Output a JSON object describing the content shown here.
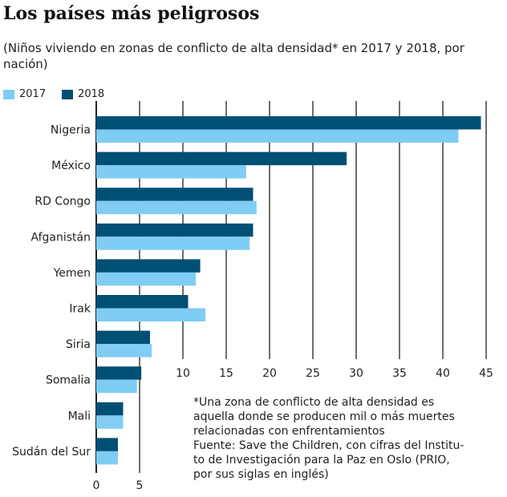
{
  "title": "Los países más peligrosos",
  "subtitle": "(Niños viviendo en zonas de conflicto de alta densidad* en 2017 y 2018, por nación)",
  "colors": {
    "2017": "#7fcdf4",
    "2018": "#004f74",
    "grid": "#222222"
  },
  "footnote": [
    "*Una zona de conflicto de alta densidad es",
    "aquella donde se producen mil o más muertes",
    "relacionadas con enfrentamientos",
    "Fuente: Save the Children, con cifras del Institu-",
    "to de Investigación para la Paz en Oslo (PRIO,",
    "por sus siglas en inglés)"
  ],
  "chart_data": {
    "type": "bar",
    "orientation": "horizontal",
    "title": "Los países más peligrosos",
    "categories": [
      "Nigeria",
      "México",
      "RD Congo",
      "Afganistán",
      "Yemen",
      "Irak",
      "Siria",
      "Somalia",
      "Mali",
      "Sudán del Sur"
    ],
    "series": [
      {
        "name": "2017",
        "values": [
          41.8,
          17.3,
          18.5,
          17.7,
          11.5,
          12.6,
          6.4,
          4.7,
          3.1,
          2.5
        ]
      },
      {
        "name": "2018",
        "values": [
          44.4,
          28.9,
          18.1,
          18.1,
          12.0,
          10.6,
          6.2,
          5.2,
          3.1,
          2.5
        ]
      }
    ],
    "xlim": [
      0,
      45
    ],
    "xticks": [
      "0",
      "5",
      "10",
      "15",
      "20",
      "25",
      "30",
      "35",
      "40",
      "45"
    ],
    "grid": true,
    "legend": "top-left"
  }
}
